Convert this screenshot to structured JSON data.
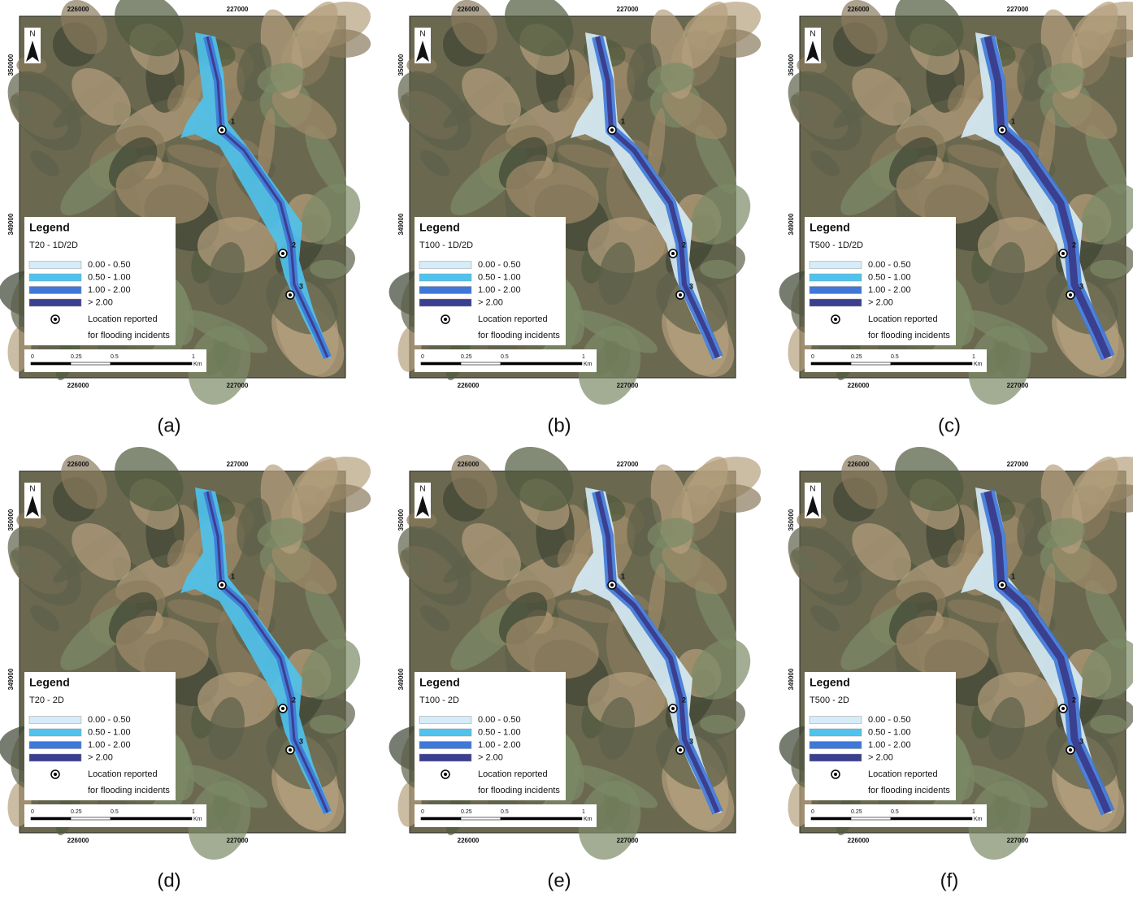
{
  "panels": [
    {
      "caption": "(a)",
      "scenario": "T20 - 1D/2D"
    },
    {
      "caption": "(b)",
      "scenario": "T100 - 1D/2D"
    },
    {
      "caption": "(c)",
      "scenario": "T500 - 1D/2D"
    },
    {
      "caption": "(d)",
      "scenario": "T20 - 2D"
    },
    {
      "caption": "(e)",
      "scenario": "T100 - 2D"
    },
    {
      "caption": "(f)",
      "scenario": "T500 - 2D"
    }
  ],
  "legend": {
    "title": "Legend",
    "classes": [
      "0.00 - 0.50",
      "0.50 - 1.00",
      "1.00 - 2.00",
      "> 2.00"
    ],
    "colors": [
      "#d6ecf8",
      "#4fc3ee",
      "#3f78d8",
      "#3b3f8f"
    ],
    "location": [
      "Location reported",
      "for flooding incidents"
    ]
  },
  "grid_labels": {
    "x": [
      "226000",
      "227000"
    ],
    "y": [
      "350000",
      "349000"
    ]
  },
  "scale_bar": {
    "labels": [
      "0",
      "0.25",
      "0.5",
      "1"
    ],
    "unit": "Km"
  },
  "north": "N",
  "sites": [
    "1",
    "2",
    "3"
  ]
}
